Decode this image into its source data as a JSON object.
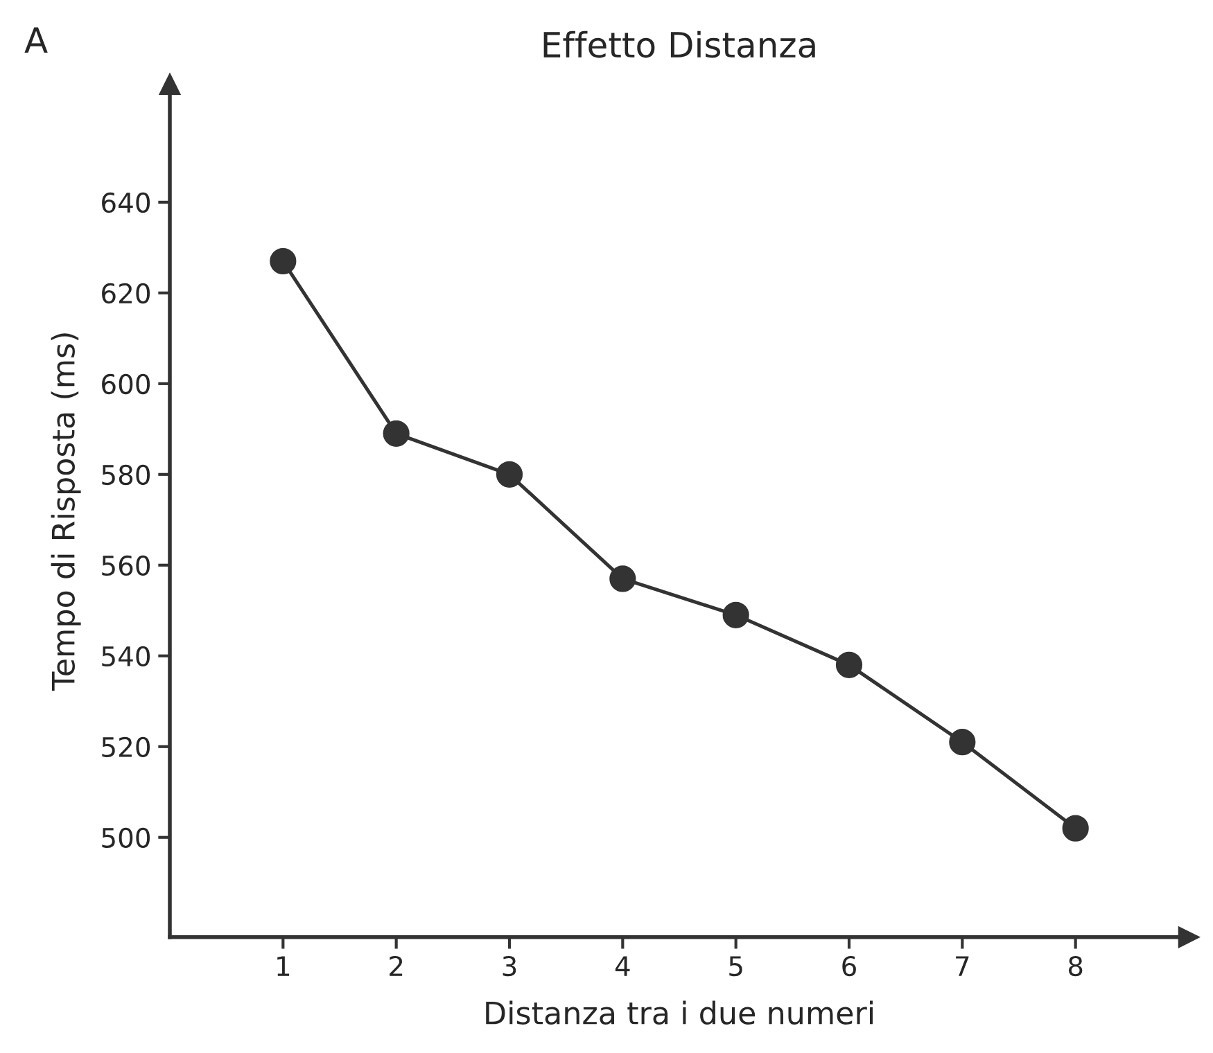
{
  "chart_data": {
    "type": "line",
    "title": "Effetto Distanza",
    "xlabel": "Distanza tra i due numeri",
    "ylabel": "Tempo di Risposta (ms)",
    "annotations": [
      "A"
    ],
    "x": [
      1,
      2,
      3,
      4,
      5,
      6,
      7,
      8
    ],
    "series": [
      {
        "color": "#333333",
        "values": [
          627,
          589,
          580,
          557,
          549,
          538,
          521,
          502
        ]
      }
    ],
    "xlim": [
      0,
      9
    ],
    "xticks": [
      1,
      2,
      3,
      4,
      5,
      6,
      7,
      8
    ],
    "ylim": [
      478,
      666
    ],
    "yticks": [
      500,
      520,
      540,
      560,
      580,
      600,
      620,
      640
    ],
    "grid": false,
    "marker": "circle",
    "line_style": "solid"
  }
}
